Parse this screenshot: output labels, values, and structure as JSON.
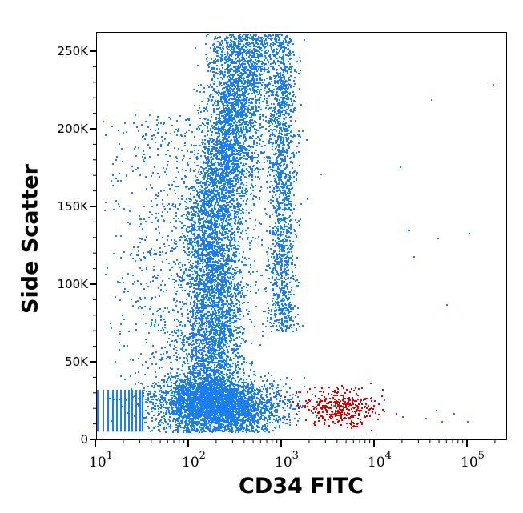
{
  "chart_data": {
    "type": "scatter",
    "title": "",
    "xlabel": "CD34 FITC",
    "ylabel": "Side Scatter",
    "xscale": "log",
    "xlim_log10": [
      0.98,
      5.45
    ],
    "ylim": [
      0,
      262000
    ],
    "grid": false,
    "yticks": [
      {
        "value": 0,
        "label": "0"
      },
      {
        "value": 50000,
        "label": "50K"
      },
      {
        "value": 100000,
        "label": "100K"
      },
      {
        "value": 150000,
        "label": "150K"
      },
      {
        "value": 200000,
        "label": "200K"
      },
      {
        "value": 250000,
        "label": "250K"
      }
    ],
    "xticks": [
      {
        "exp": 1,
        "base": "10",
        "sup": "1"
      },
      {
        "exp": 2,
        "base": "10",
        "sup": "2"
      },
      {
        "exp": 3,
        "base": "10",
        "sup": "3"
      },
      {
        "exp": 4,
        "base": "10",
        "sup": "4"
      },
      {
        "exp": 5,
        "base": "10",
        "sup": "5"
      }
    ],
    "colors": {
      "main": "#1a7ff0",
      "gated": "#e00000"
    },
    "populations": [
      {
        "name": "bottom-blob",
        "color": "main",
        "n": 3500,
        "logx_mean": 2.3,
        "logx_sd": 0.33,
        "y_mean": 22000,
        "y_sd": 9000
      },
      {
        "name": "main-band",
        "color": "main",
        "n": 6500,
        "y_min": 28000,
        "y_max": 262000,
        "logx_base": 2.15,
        "logx_slope_per_262K": 0.45,
        "logx_sd": 0.17
      },
      {
        "name": "right-column",
        "color": "main",
        "n": 1600,
        "y_min": 70000,
        "y_max": 262000,
        "logx_mean": 3.0,
        "logx_sd": 0.08
      },
      {
        "name": "left-sparse",
        "color": "main",
        "n": 700,
        "y_min": 25000,
        "y_max": 210000,
        "logx_mean": 1.75,
        "logx_sd": 0.3
      },
      {
        "name": "cd34-positive",
        "color": "gated",
        "n": 380,
        "logx_mean": 3.6,
        "logx_sd": 0.2,
        "y_mean": 21000,
        "y_sd": 6000
      }
    ],
    "stripes": {
      "color": "main",
      "logx": [
        1.02,
        1.08,
        1.13,
        1.18,
        1.22,
        1.27,
        1.31,
        1.35,
        1.39,
        1.43,
        1.47,
        1.5
      ],
      "y_min": 5000,
      "y_max": 32000
    },
    "outliers": [
      {
        "logx": 5.28,
        "y": 229000
      },
      {
        "logx": 4.61,
        "y": 219000
      },
      {
        "logx": 4.28,
        "y": 176000
      },
      {
        "logx": 4.37,
        "y": 135000
      },
      {
        "logx": 4.68,
        "y": 130000
      },
      {
        "logx": 5.02,
        "y": 133000
      },
      {
        "logx": 4.42,
        "y": 118000
      },
      {
        "logx": 4.78,
        "y": 87000
      },
      {
        "logx": 3.42,
        "y": 171000
      },
      {
        "logx": 1.31,
        "y": 204000
      },
      {
        "logx": 4.3,
        "y": 15000
      },
      {
        "logx": 4.55,
        "y": 14000
      },
      {
        "logx": 4.72,
        "y": 12000
      },
      {
        "logx": 4.85,
        "y": 17000
      },
      {
        "logx": 5.0,
        "y": 12000
      },
      {
        "logx": 4.1,
        "y": 26000
      },
      {
        "logx": 4.66,
        "y": 19000
      }
    ]
  }
}
